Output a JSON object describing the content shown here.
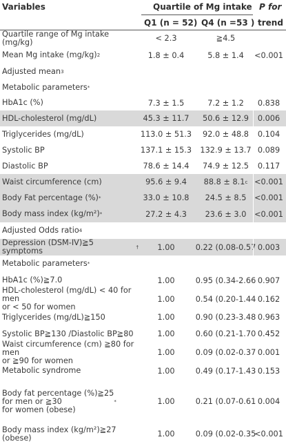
{
  "header": {
    "variables": "Variables",
    "quartile_title": "Quartile of Mg intake",
    "p_for": "P for",
    "q1": "Q1 (n = 52)",
    "q4": "Q4 (n =53 )",
    "trend": "trend"
  },
  "rows": [
    {
      "label": "Quartile range of Mg intake (mg/kg)",
      "sup": "",
      "q1": "< 2.3",
      "q4": "≧4.5",
      "p": "",
      "shade": false
    },
    {
      "label": "Mean Mg intake (mg/kg)",
      "sup": "2",
      "q1": "1.8 ± 0.4",
      "q4": "5.8 ± 1.4",
      "p": "<0.001",
      "shade": false
    },
    {
      "label": "Adjusted mean",
      "sup": "3",
      "q1": "",
      "q4": "",
      "p": "",
      "shade": false
    },
    {
      "label": "Metabolic parameters",
      "sup": "*",
      "q1": "",
      "q4": "",
      "p": "",
      "shade": false
    },
    {
      "label": "HbA1c (%)",
      "sup": "",
      "q1": "7.3 ± 1.5",
      "q4": "7.2 ± 1.2",
      "p": "0.838",
      "shade": false
    },
    {
      "label": "HDL-cholesterol (mg/dL)",
      "sup": "",
      "q1": "45.3 ± 11.7",
      "q4": "50.6 ± 12.9",
      "p": "0.006",
      "shade": true
    },
    {
      "label": "Triglycerides (mg/dL)",
      "sup": "",
      "q1": "113.0 ± 51.3",
      "q4": "92.0 ± 48.8",
      "p": "0.104",
      "shade": false
    },
    {
      "label": "Systolic BP",
      "sup": "",
      "q1": "137.1 ± 15.3",
      "q4": "132.9 ± 13.7",
      "p": "0.089",
      "shade": false
    },
    {
      "label": "Diastolic BP",
      "sup": "",
      "q1": "78.6 ± 14.4",
      "q4": "74.9 ± 12.5",
      "p": "0.117",
      "shade": false
    },
    {
      "label": "Waist circumference (cm)",
      "sup": "",
      "q1": "95.6 ± 9.4",
      "q4": "88.8 ± 8.1",
      "q4sup": "c",
      "p": "<0.001",
      "shade": true
    },
    {
      "label": "Body Fat percentage (%)",
      "sup": "*",
      "q1": "33.0 ± 10.8",
      "q4": "24.5 ± 8.5",
      "p": "<0.001",
      "shade": true
    },
    {
      "label": "Body mass index (kg/m²)",
      "sup": "*",
      "q1": "27.2 ± 4.3",
      "q4": "23.6 ± 3.0",
      "p": "<0.001",
      "shade": true
    },
    {
      "label": "Adjusted Odds ratio",
      "sup": "4",
      "q1": "",
      "q4": "",
      "p": "",
      "shade": false
    },
    {
      "label": "Depression (DSM-IV)≧5 symptoms",
      "sup": "†",
      "q1": "1.00",
      "q4": "0.22 (0.08-0.57",
      "p": "0.003",
      "shade": true
    },
    {
      "label": "Metabolic parameters",
      "sup": "*",
      "q1": "",
      "q4": "",
      "p": "",
      "shade": false
    },
    {
      "label": "HbA1c (%)≧7.0",
      "sup": "",
      "q1": "1.00",
      "q4": "0.95 (0.34-2.66",
      "p": "0.907",
      "shade": false
    },
    {
      "label": "HDL-cholesterol (mg/dL) < 40 for men\nor < 50 for women",
      "sup": "",
      "q1": "1.00",
      "q4": "0.54 (0.20-1.44",
      "p": "0.162",
      "shade": false
    },
    {
      "label": "Triglycerides (mg/dL)≧150",
      "sup": "",
      "q1": "1.00",
      "q4": "0.90 (0.23-3.48",
      "p": "0.963",
      "shade": false
    },
    {
      "label": "Systolic BP≧130 /Diastolic BP≧80",
      "sup": "",
      "q1": "1.00",
      "q4": "0.60 (0.21-1.70",
      "p": "0.452",
      "shade": false
    },
    {
      "label": "Waist circumference (cm) ≧80 for men\nor ≧90 for women",
      "sup": "",
      "q1": "1.00",
      "q4": "0.09 (0.02-0.37",
      "p": "0.001",
      "shade": false
    },
    {
      "label": "Metabolic syndrome",
      "sup": "",
      "q1": "1.00",
      "q4": "0.49 (0.17-1.43",
      "p": "0.153",
      "shade": false
    },
    {
      "label": "Body fat percentage (%)≧25\nfor men or ≧30\nfor women (obese)",
      "sup": "*",
      "q1": "1.00",
      "q4": "0.21 (0.07-0.61",
      "p": "0.004",
      "shade": false
    },
    {
      "label": "Body mass index (kg/m²)≧27 (obese)",
      "sup": "",
      "q1": "1.00",
      "q4": "0.09 (0.02-0.35",
      "p": "<0.001",
      "shade": false
    }
  ]
}
